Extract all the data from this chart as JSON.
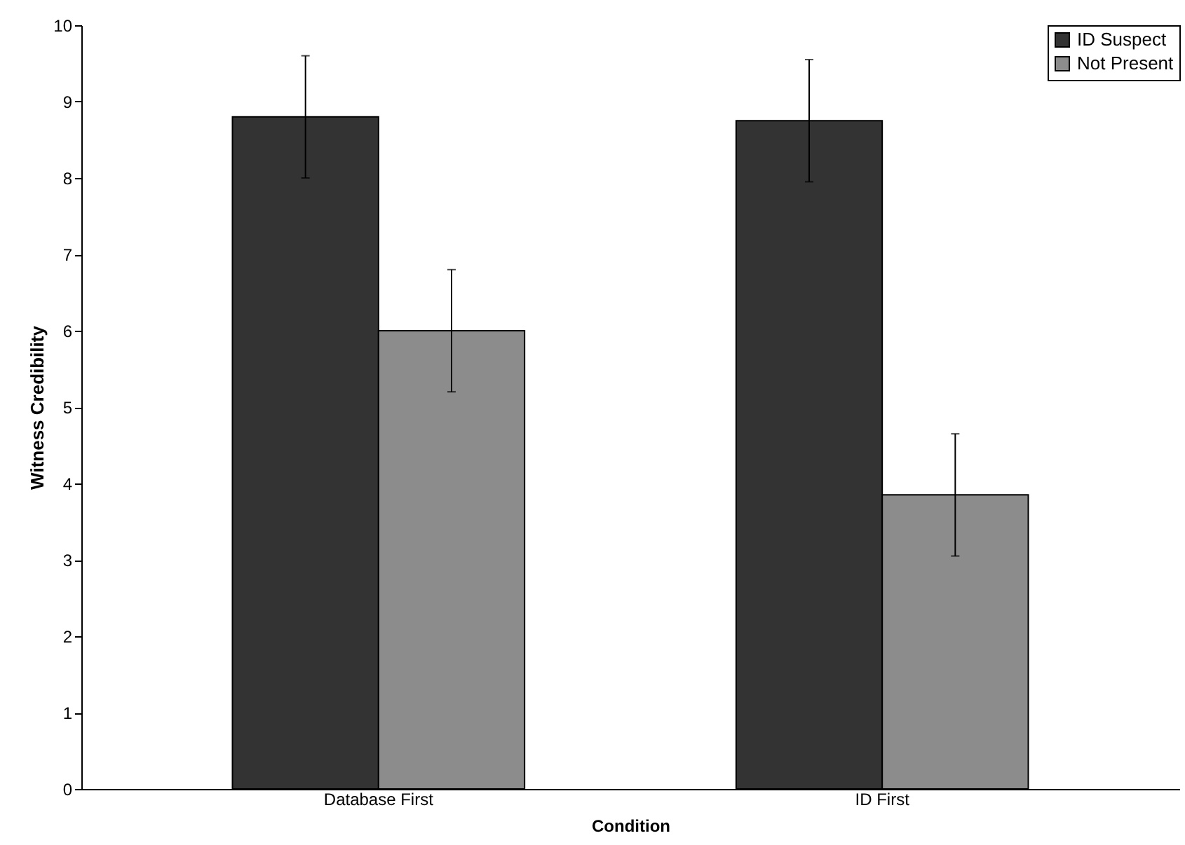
{
  "chart_data": {
    "type": "bar",
    "xlabel": "Condition",
    "ylabel": "Witness Credibility",
    "categories": [
      "Database First",
      "ID First"
    ],
    "series": [
      {
        "name": "ID Suspect",
        "color": "#333333",
        "values": [
          8.8,
          8.75
        ],
        "errors": [
          0.8,
          0.8
        ]
      },
      {
        "name": "Not Present",
        "color": "#8c8c8c",
        "values": [
          6.0,
          3.85
        ],
        "errors": [
          0.8,
          0.8
        ]
      }
    ],
    "ylim": [
      0,
      10
    ],
    "yticks": [
      0,
      1,
      2,
      3,
      4,
      5,
      6,
      7,
      8,
      9,
      10
    ],
    "grid": false,
    "legend": "top right"
  }
}
